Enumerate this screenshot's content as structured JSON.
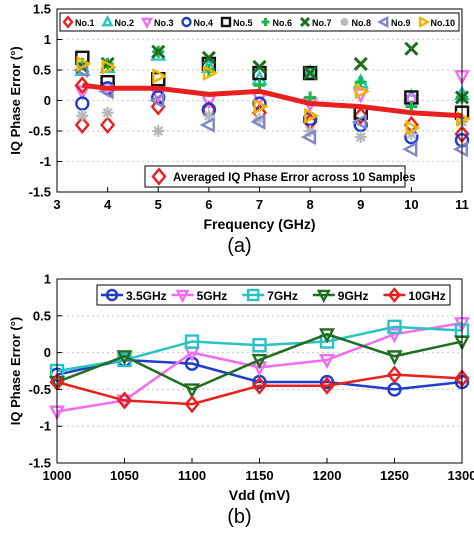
{
  "colors": {
    "No.1": "#e8201e",
    "No.2": "#2ac3c3",
    "No.3": "#f06cf0",
    "No.4": "#1f3dc9",
    "No.5": "#111111",
    "No.6": "#16b84a",
    "No.7": "#1f6e1f",
    "No.8": "#b8b8b8",
    "No.9": "#7f86c8",
    "No.10": "#f0b400",
    "avg": "#e8201e",
    "3.5GHz": "#1f3dc9",
    "5GHz": "#f06cf0",
    "7GHz": "#2ac3c3",
    "9GHz": "#1f6e1f",
    "10GHz": "#e8201e"
  },
  "chart_data": [
    {
      "type": "scatter",
      "subtitle": "(a)",
      "xlabel": "Frequency (GHz)",
      "ylabel": "IQ Phase Error (°)",
      "xlim": [
        3,
        11
      ],
      "ylim": [
        -1.5,
        1.5
      ],
      "xticks": [
        "3",
        "4",
        "5",
        "6",
        "7",
        "8",
        "9",
        "10",
        "11"
      ],
      "yticks": [
        "-1.5",
        "-1",
        "-0.5",
        "0",
        "0.5",
        "1",
        "1.5"
      ],
      "grid": "horizontal dotted",
      "legend_position": "top",
      "x": [
        3.5,
        4,
        5,
        6,
        7,
        8,
        9,
        10,
        11
      ],
      "series": [
        {
          "name": "No.1",
          "marker": "diamond",
          "values": [
            -0.4,
            -0.4,
            -0.1,
            -0.15,
            -0.2,
            -0.35,
            -0.25,
            -0.4,
            -0.55
          ]
        },
        {
          "name": "No.2",
          "marker": "triangle-up",
          "values": [
            0.5,
            0.55,
            0.75,
            0.55,
            0.35,
            0.45,
            0.3,
            0.05,
            0.1
          ]
        },
        {
          "name": "No.3",
          "marker": "triangle-down",
          "values": [
            0.15,
            0.2,
            0.1,
            0.0,
            0.05,
            -0.05,
            0.1,
            0.0,
            0.4
          ]
        },
        {
          "name": "No.4",
          "marker": "circle",
          "values": [
            -0.05,
            0.2,
            0.05,
            -0.15,
            -0.05,
            -0.3,
            -0.4,
            -0.6,
            -0.65
          ]
        },
        {
          "name": "No.5",
          "marker": "square",
          "values": [
            0.7,
            0.3,
            0.35,
            0.6,
            0.45,
            0.45,
            -0.2,
            0.05,
            -0.2
          ]
        },
        {
          "name": "No.6",
          "marker": "plus",
          "values": [
            0.6,
            0.6,
            0.8,
            0.5,
            0.25,
            0.05,
            0.3,
            -0.1,
            0.05
          ]
        },
        {
          "name": "No.7",
          "marker": "x",
          "values": [
            0.55,
            0.6,
            0.8,
            0.7,
            0.55,
            0.45,
            0.6,
            0.85,
            0.05
          ]
        },
        {
          "name": "No.8",
          "marker": "asterisk",
          "values": [
            -0.25,
            -0.2,
            -0.5,
            -0.25,
            -0.3,
            -0.5,
            -0.6,
            -0.55,
            -0.35
          ]
        },
        {
          "name": "No.9",
          "marker": "triangle-left",
          "values": [
            0.5,
            0.15,
            0.0,
            -0.4,
            -0.35,
            -0.6,
            -0.35,
            -0.8,
            -0.8
          ]
        },
        {
          "name": "No.10",
          "marker": "triangle-right",
          "values": [
            0.6,
            0.55,
            0.4,
            0.45,
            -0.1,
            -0.25,
            0.15,
            -0.45,
            -0.3
          ]
        },
        {
          "name": "Averaged IQ Phase Error across 10 Samples",
          "marker": "diamond",
          "line": true,
          "values": [
            0.25,
            0.2,
            0.2,
            0.1,
            0.15,
            -0.05,
            -0.1,
            -0.2,
            -0.25
          ]
        }
      ]
    },
    {
      "type": "line",
      "subtitle": "(b)",
      "xlabel": "Vdd (mV)",
      "ylabel": "IQ Phase Error (°)",
      "xlim": [
        1000,
        1300
      ],
      "ylim": [
        -1.5,
        1
      ],
      "xticks": [
        "1000",
        "1050",
        "1100",
        "1150",
        "1200",
        "1250",
        "1300"
      ],
      "yticks": [
        "-1.5",
        "-1",
        "-0.5",
        "0",
        "0.5",
        "1"
      ],
      "grid": "horizontal dotted",
      "legend_position": "top",
      "x": [
        1000,
        1050,
        1100,
        1150,
        1200,
        1250,
        1300
      ],
      "series": [
        {
          "name": "3.5GHz",
          "marker": "circle",
          "values": [
            -0.3,
            -0.1,
            -0.15,
            -0.4,
            -0.4,
            -0.5,
            -0.4
          ]
        },
        {
          "name": "5GHz",
          "marker": "triangle-down",
          "values": [
            -0.8,
            -0.65,
            0.0,
            -0.2,
            -0.1,
            0.25,
            0.4
          ]
        },
        {
          "name": "7GHz",
          "marker": "square",
          "values": [
            -0.25,
            -0.1,
            0.15,
            0.1,
            0.15,
            0.35,
            0.3
          ]
        },
        {
          "name": "9GHz",
          "marker": "triangle-down",
          "values": [
            -0.4,
            -0.05,
            -0.5,
            -0.1,
            0.25,
            -0.05,
            0.15
          ]
        },
        {
          "name": "10GHz",
          "marker": "diamond",
          "values": [
            -0.4,
            -0.65,
            -0.7,
            -0.45,
            -0.45,
            -0.3,
            -0.35
          ]
        }
      ]
    }
  ]
}
